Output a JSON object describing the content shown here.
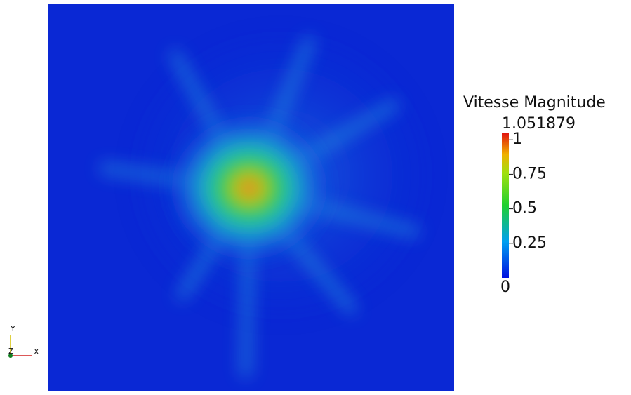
{
  "colorbar": {
    "title": "Vitesse Magnitude",
    "range": [
      0,
      1.051879
    ],
    "ticks": [
      0.25,
      0.5,
      0.75,
      1
    ]
  },
  "orientation_axes": {
    "y_label": "Y",
    "z_label": "Z",
    "x_label": "X"
  }
}
